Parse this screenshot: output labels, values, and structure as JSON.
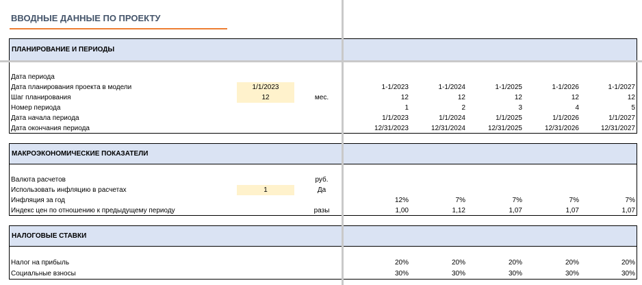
{
  "title": "ВВОДНЫЕ ДАННЫЕ ПО ПРОЕКТУ",
  "colors": {
    "band": "#dae3f3",
    "input": "#fff2cc",
    "title": "#44546a",
    "accent": "#ed7d31"
  },
  "planning": {
    "header": "ПЛАНИРОВАНИЕ И ПЕРИОДЫ",
    "rows": [
      {
        "label": "Дата периода",
        "input": "",
        "unit": "",
        "values": [
          "",
          "",
          "",
          "",
          ""
        ]
      },
      {
        "label": "Дата планирования проекта в модели",
        "input": "1/1/2023",
        "unit": "",
        "values": [
          "1-1/2023",
          "1-1/2024",
          "1-1/2025",
          "1-1/2026",
          "1-1/2027"
        ]
      },
      {
        "label": "Шаг планирования",
        "input": "12",
        "unit": "мес.",
        "values": [
          "12",
          "12",
          "12",
          "12",
          "12"
        ]
      },
      {
        "label": "Номер периода",
        "input": "",
        "unit": "",
        "values": [
          "1",
          "2",
          "3",
          "4",
          "5"
        ]
      },
      {
        "label": "Дата начала периода",
        "input": "",
        "unit": "",
        "values": [
          "1/1/2023",
          "1/1/2024",
          "1/1/2025",
          "1/1/2026",
          "1/1/2027"
        ]
      },
      {
        "label": "Дата окончания периода",
        "input": "",
        "unit": "",
        "values": [
          "12/31/2023",
          "12/31/2024",
          "12/31/2025",
          "12/31/2026",
          "12/31/2027"
        ]
      }
    ]
  },
  "macro": {
    "header": "МАКРОЭКОНОМИЧЕСКИЕ ПОКАЗАТЕЛИ",
    "rows": [
      {
        "label": "Валюта расчетов",
        "input": "",
        "unit": "руб.",
        "values": [
          "",
          "",
          "",
          "",
          ""
        ]
      },
      {
        "label": "Использовать инфляцию в расчетах",
        "input": "1",
        "unit": "Да",
        "values": [
          "",
          "",
          "",
          "",
          ""
        ]
      },
      {
        "label": "Инфляция за год",
        "input": "",
        "unit": "",
        "values": [
          "12%",
          "7%",
          "7%",
          "7%",
          "7%"
        ]
      },
      {
        "label": "Индекс цен по отношению к предыдущему периоду",
        "input": "",
        "unit": "разы",
        "values": [
          "1,00",
          "1,12",
          "1,07",
          "1,07",
          "1,07"
        ]
      }
    ]
  },
  "tax": {
    "header": "НАЛОГОВЫЕ СТАВКИ",
    "rows": [
      {
        "label": "Налог на прибыль",
        "input": "",
        "unit": "",
        "values": [
          "20%",
          "20%",
          "20%",
          "20%",
          "20%"
        ]
      },
      {
        "label": "Социальные взносы",
        "input": "",
        "unit": "",
        "values": [
          "30%",
          "30%",
          "30%",
          "30%",
          "30%"
        ]
      }
    ]
  }
}
